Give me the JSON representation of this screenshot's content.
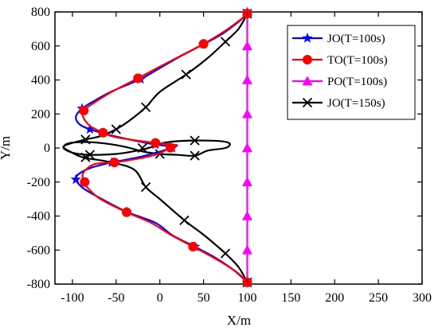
{
  "chart_data": {
    "type": "line",
    "xlabel": "X/m",
    "ylabel": "Y/m",
    "xlim": [
      -120,
      300
    ],
    "ylim": [
      -800,
      800
    ],
    "xticks": [
      -100,
      -50,
      0,
      50,
      100,
      150,
      200,
      250,
      300
    ],
    "yticks": [
      -800,
      -600,
      -400,
      -200,
      0,
      200,
      400,
      600,
      800
    ],
    "legend_position": "top-right",
    "series": [
      {
        "name": "JO(T=100s)",
        "color": "#0000ff",
        "marker": "star",
        "points": [
          [
            100,
            790
          ],
          [
            90,
            742
          ],
          [
            72,
            673
          ],
          [
            50,
            610
          ],
          [
            25,
            543
          ],
          [
            0,
            470
          ],
          [
            -22,
            405
          ],
          [
            -54,
            335
          ],
          [
            -74,
            280
          ],
          [
            -89,
            232
          ],
          [
            -96,
            185
          ],
          [
            -92,
            140
          ],
          [
            -80,
            110
          ],
          [
            -60,
            80
          ],
          [
            -30,
            45
          ],
          [
            -5,
            20
          ],
          [
            10,
            12
          ],
          [
            18,
            14
          ],
          [
            14,
            0
          ],
          [
            -5,
            -28
          ],
          [
            -25,
            -55
          ],
          [
            -55,
            -85
          ],
          [
            -78,
            -115
          ],
          [
            -92,
            -150
          ],
          [
            -96,
            -185
          ],
          [
            -88,
            -235
          ],
          [
            -70,
            -290
          ],
          [
            -38,
            -375
          ],
          [
            -5,
            -440
          ],
          [
            15,
            -515
          ],
          [
            40,
            -580
          ],
          [
            65,
            -650
          ],
          [
            85,
            -720
          ],
          [
            100,
            -790
          ]
        ]
      },
      {
        "name": "TO(T=100s)",
        "color": "#ff0000",
        "marker": "circle",
        "points": [
          [
            100,
            790
          ],
          [
            93,
            758
          ],
          [
            75,
            690
          ],
          [
            50,
            612
          ],
          [
            25,
            545
          ],
          [
            -3,
            470
          ],
          [
            -25,
            410
          ],
          [
            -54,
            333
          ],
          [
            -74,
            270
          ],
          [
            -87,
            220
          ],
          [
            -88,
            185
          ],
          [
            -80,
            130
          ],
          [
            -65,
            90
          ],
          [
            -52,
            65
          ],
          [
            -28,
            45
          ],
          [
            -5,
            30
          ],
          [
            14,
            20
          ],
          [
            20,
            15
          ],
          [
            12,
            2
          ],
          [
            -2,
            -35
          ],
          [
            -22,
            -60
          ],
          [
            -52,
            -85
          ],
          [
            -75,
            -95
          ],
          [
            -88,
            -150
          ],
          [
            -86,
            -200
          ],
          [
            -83,
            -232
          ],
          [
            -68,
            -300
          ],
          [
            -38,
            -378
          ],
          [
            -10,
            -440
          ],
          [
            14,
            -515
          ],
          [
            38,
            -580
          ],
          [
            65,
            -655
          ],
          [
            88,
            -730
          ],
          [
            100,
            -790
          ]
        ]
      },
      {
        "name": "PO(T=100s)",
        "color": "#ff00ff",
        "marker": "triangle",
        "points": [
          [
            100,
            -800
          ],
          [
            100,
            800
          ]
        ],
        "markers_y": [
          -600,
          -400,
          -200,
          0,
          200,
          400,
          600,
          800
        ]
      },
      {
        "name": "JO(T=150s)",
        "color": "#000000",
        "marker": "x",
        "points": [
          [
            100,
            790
          ],
          [
            90,
            700
          ],
          [
            75,
            625
          ],
          [
            55,
            530
          ],
          [
            30,
            432
          ],
          [
            0,
            330
          ],
          [
            -16,
            240
          ],
          [
            -35,
            160
          ],
          [
            -50,
            110
          ],
          [
            -68,
            70
          ],
          [
            -85,
            50
          ],
          [
            -100,
            30
          ],
          [
            -110,
            10
          ],
          [
            -108,
            -10
          ],
          [
            -98,
            -30
          ],
          [
            -80,
            -40
          ],
          [
            -50,
            -35
          ],
          [
            -25,
            -15
          ],
          [
            -10,
            5
          ],
          [
            0,
            25
          ],
          [
            15,
            38
          ],
          [
            40,
            44
          ],
          [
            70,
            40
          ],
          [
            80,
            25
          ],
          [
            75,
            0
          ],
          [
            55,
            -15
          ],
          [
            40,
            -45
          ],
          [
            20,
            -40
          ],
          [
            0,
            -35
          ],
          [
            -20,
            -20
          ],
          [
            -38,
            5
          ],
          [
            -60,
            25
          ],
          [
            -85,
            35
          ],
          [
            -104,
            28
          ],
          [
            -110,
            5
          ],
          [
            -103,
            -20
          ],
          [
            -88,
            -55
          ],
          [
            -60,
            -80
          ],
          [
            -30,
            -125
          ],
          [
            -16,
            -230
          ],
          [
            0,
            -300
          ],
          [
            28,
            -425
          ],
          [
            50,
            -510
          ],
          [
            75,
            -620
          ],
          [
            90,
            -700
          ],
          [
            100,
            -790
          ]
        ],
        "marker_points": [
          [
            100,
            790
          ],
          [
            75,
            625
          ],
          [
            30,
            432
          ],
          [
            -16,
            240
          ],
          [
            -50,
            110
          ],
          [
            -85,
            50
          ],
          [
            -80,
            -40
          ],
          [
            -20,
            0
          ],
          [
            40,
            44
          ],
          [
            40,
            -45
          ],
          [
            0,
            -35
          ],
          [
            -85,
            -55
          ],
          [
            -16,
            -230
          ],
          [
            28,
            -425
          ],
          [
            75,
            -620
          ],
          [
            100,
            -790
          ]
        ]
      }
    ]
  }
}
